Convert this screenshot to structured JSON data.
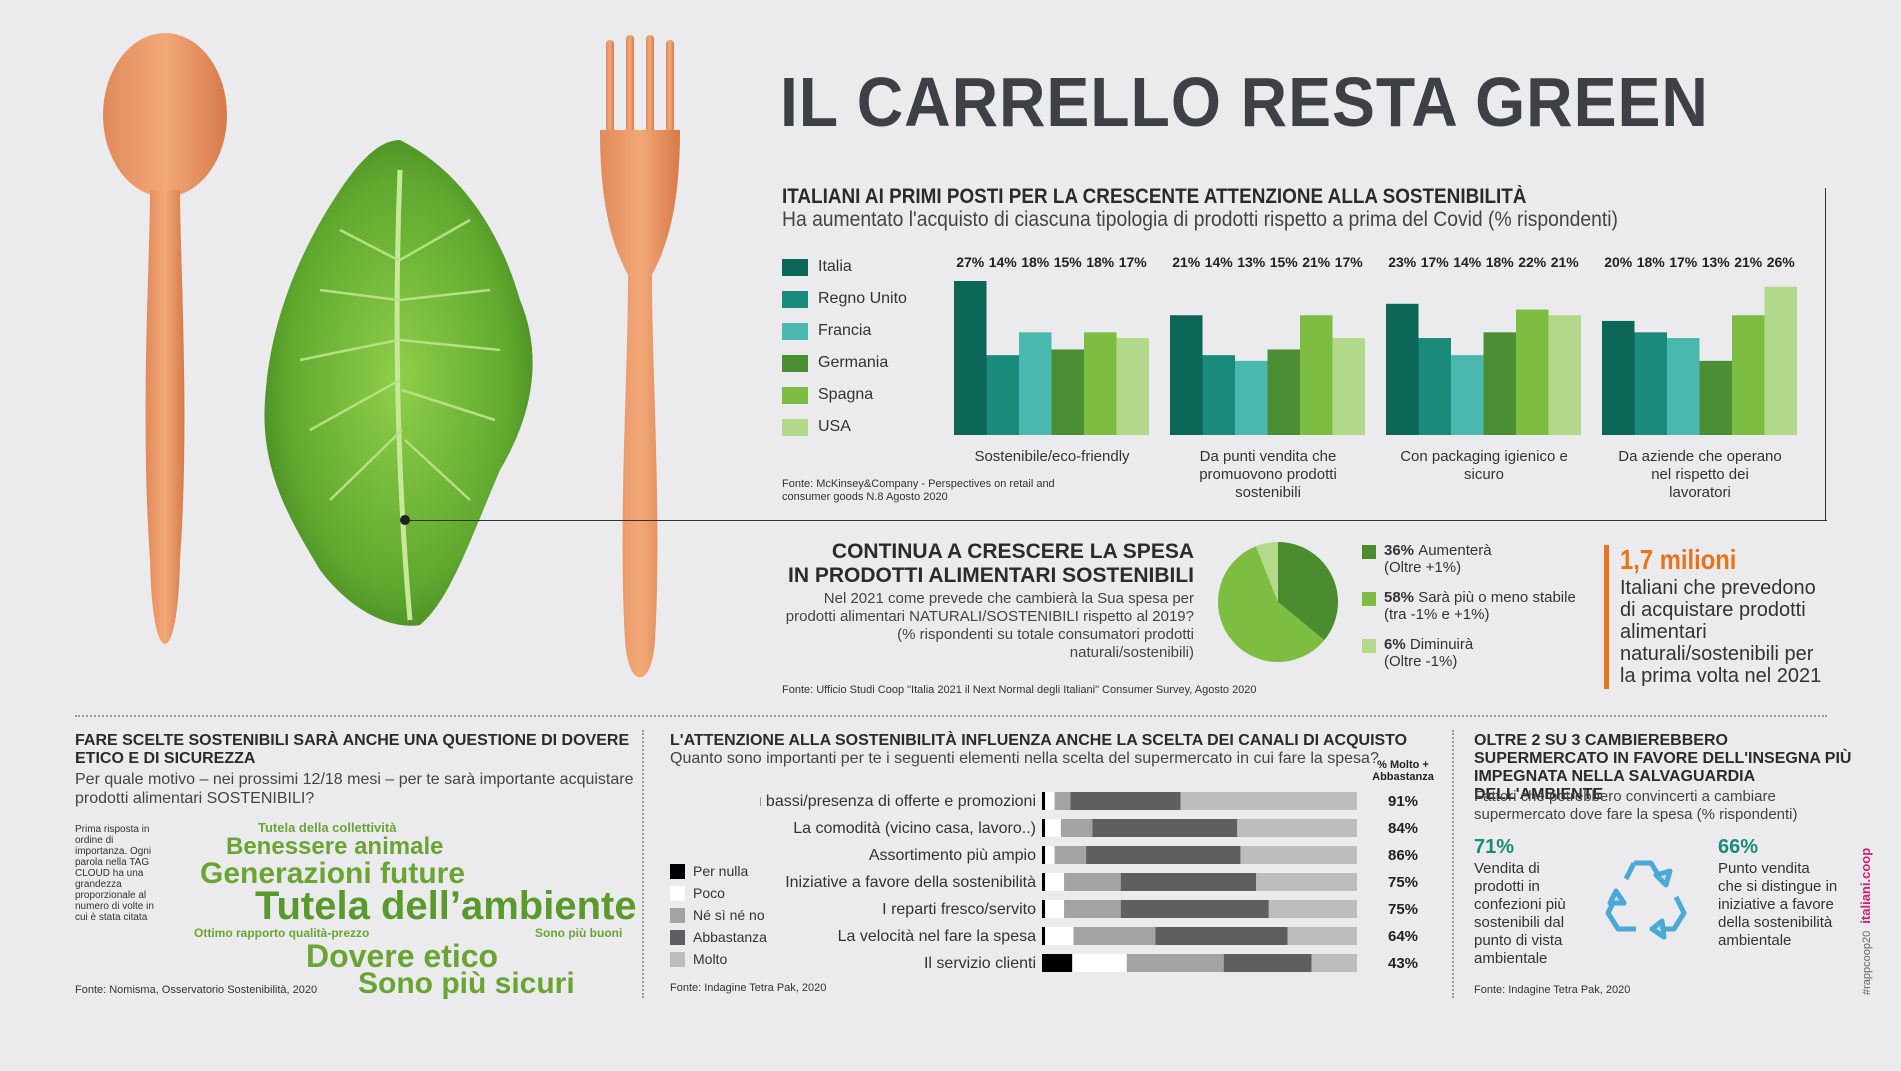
{
  "title": "IL CARRELLO RESTA GREEN",
  "section1": {
    "title": "ITALIANI AI PRIMI POSTI PER LA CRESCENTE ATTENZIONE ALLA SOSTENIBILITÀ",
    "subtitle": "Ha aumentato l'acquisto di ciascuna tipologia di prodotti rispetto a prima del Covid (% rispondenti)",
    "source": "Fonte: McKinsey&Company - Perspectives on retail and consumer goods N.8 Agosto 2020"
  },
  "section2": {
    "title_line1": "CONTINUA A CRESCERE LA SPESA",
    "title_line2": "IN PRODOTTI ALIMENTARI SOSTENIBILI",
    "text": "Nel 2021 come prevede che cambierà la Sua spesa per prodotti alimentari NATURALI/SOSTENIBILI rispetto al 2019? (% rispondenti su totale consumatori prodotti naturali/sostenibili)",
    "source": "Fonte: Ufficio Studi Coop \"Italia 2021 il Next Normal degli Italiani\" Consumer Survey, Agosto 2020",
    "legend": [
      {
        "pct": "36%",
        "label": "Aumenterà",
        "sub": "(Oltre +1%)",
        "color": "#4a8c2f"
      },
      {
        "pct": "58%",
        "label": "Sarà più o meno stabile",
        "sub": "(tra -1% e +1%)",
        "color": "#7cbd42"
      },
      {
        "pct": "6%",
        "label": "Diminuirà",
        "sub": "(Oltre -1%)",
        "color": "#b4d98a"
      }
    ],
    "callout_number": "1,7 milioni",
    "callout_text": "Italiani che prevedono di acquistare prodotti alimentari naturali/sostenibili per la prima volta nel 2021"
  },
  "section3": {
    "title": "FARE SCELTE SOSTENIBILI SARÀ ANCHE UNA QUESTIONE DI DOVERE ETICO E DI SICUREZZA",
    "subtitle": "Per quale motivo – nei prossimi 12/18 mesi – per te sarà importante acquistare prodotti alimentari SOSTENIBILI?",
    "note": "Prima risposta in ordine di importanza. Ogni parola nella TAG CLOUD ha una grandezza proporzionale al numero di volte in cui è stata citata",
    "tags": {
      "t1": "Tutela della collettività",
      "t2": "Benessere animale",
      "t3": "Generazioni future",
      "t4": "Tutela dell’ambiente",
      "t5": "Ottimo rapporto qualità-prezzo",
      "t6": "Sono più buoni",
      "t7": "Dovere etico",
      "t8": "Sono più sicuri"
    },
    "source": "Fonte: Nomisma, Osservatorio Sostenibilità, 2020"
  },
  "section4": {
    "title": "L'ATTENZIONE ALLA SOSTENIBILITÀ INFLUENZA ANCHE LA SCELTA DEI CANALI DI ACQUISTO",
    "subtitle": "Quanto sono importanti per te i seguenti elementi nella scelta del supermercato in cui fare la spesa?",
    "col_header_1": "% Molto +",
    "col_header_2": "Abbastanza",
    "source": "Fonte: Indagine Tetra Pak, 2020"
  },
  "section5": {
    "title": "OLTRE 2 SU 3 CAMBIEREBBERO SUPERMERCATO IN FAVORE DELL'INSEGNA PIÙ IMPEGNATA NELLA SALVAGUARDIA DELL'AMBIENTE",
    "subtitle": "Fattori che potrebbero convincerti a cambiare supermercato dove fare la spesa (% rispondenti)",
    "stat1_pct": "71%",
    "stat1_text": "Vendita di prodotti in confezioni più sostenibili dal punto di vista ambientale",
    "stat2_pct": "66%",
    "stat2_text": "Punto vendita che si distingue in iniziative a favore della sostenibilità ambientale",
    "source": "Fonte: Indagine Tetra Pak, 2020"
  },
  "side_tag_1": "#rappcoop20",
  "side_tag_2": "italiani.coop",
  "chart_data": [
    {
      "type": "bar",
      "series": [
        {
          "name": "Italia",
          "color": "#0b6658",
          "values": [
            27,
            21,
            23,
            20
          ]
        },
        {
          "name": "Regno Unito",
          "color": "#1a8a7a",
          "values": [
            14,
            14,
            17,
            18
          ]
        },
        {
          "name": "Francia",
          "color": "#4bb8b0",
          "values": [
            18,
            13,
            14,
            17
          ]
        },
        {
          "name": "Germania",
          "color": "#4c8e33",
          "values": [
            15,
            15,
            18,
            13
          ]
        },
        {
          "name": "Spagna",
          "color": "#7cbd42",
          "values": [
            18,
            21,
            22,
            21
          ]
        },
        {
          "name": "USA",
          "color": "#b2d989",
          "values": [
            17,
            17,
            21,
            26
          ]
        }
      ],
      "categories": [
        "Sostenibile/eco-friendly",
        "Da punti vendita che promuovono prodotti sostenibili",
        "Con packaging igienico e sicuro",
        "Da aziende che operano nel rispetto dei lavoratori"
      ],
      "value_labels": [
        [
          "27%",
          "14%",
          "18%",
          "15%",
          "18%",
          "17%"
        ],
        [
          "21%",
          "14%",
          "13%",
          "15%",
          "21%",
          "17%"
        ],
        [
          "23%",
          "17%",
          "14%",
          "18%",
          "22%",
          "21%"
        ],
        [
          "20%",
          "18%",
          "17%",
          "13%",
          "21%",
          "26%"
        ]
      ],
      "legend": "left"
    },
    {
      "type": "pie",
      "labels": [
        "Aumenterà",
        "Sarà più o meno stabile",
        "Diminuirà"
      ],
      "values": [
        36,
        58,
        6
      ],
      "colors": [
        "#4a8c2f",
        "#7cbd42",
        "#b4d98a"
      ]
    },
    {
      "type": "bar",
      "orientation": "horizontal-stacked",
      "legend_labels": [
        "Per nulla",
        "Poco",
        "Né sì né no",
        "Abbastanza",
        "Molto"
      ],
      "colors": [
        "#000000",
        "#ffffff",
        "#a3a3a3",
        "#5f5f5f",
        "#bdbdbd"
      ],
      "categories": [
        "I prezzi più bassi/presenza di offerte e promozioni",
        "La comodità (vicino casa, lavoro..)",
        "Assortimento più ampio",
        "Iniziative a favore della sostenibilità",
        "I reparti fresco/servito",
        "La velocità nel fare la spesa",
        "Il servizio clienti"
      ],
      "segments": [
        [
          1,
          3,
          5,
          35,
          56
        ],
        [
          1,
          5,
          10,
          46,
          38
        ],
        [
          1,
          3,
          10,
          49,
          37
        ],
        [
          1,
          6,
          18,
          43,
          32
        ],
        [
          1,
          6,
          18,
          47,
          28
        ],
        [
          1,
          9,
          26,
          42,
          22
        ],
        [
          10,
          18,
          32,
          29,
          15
        ]
      ],
      "pct_labels": [
        "91%",
        "84%",
        "86%",
        "75%",
        "75%",
        "64%",
        "43%"
      ]
    }
  ]
}
